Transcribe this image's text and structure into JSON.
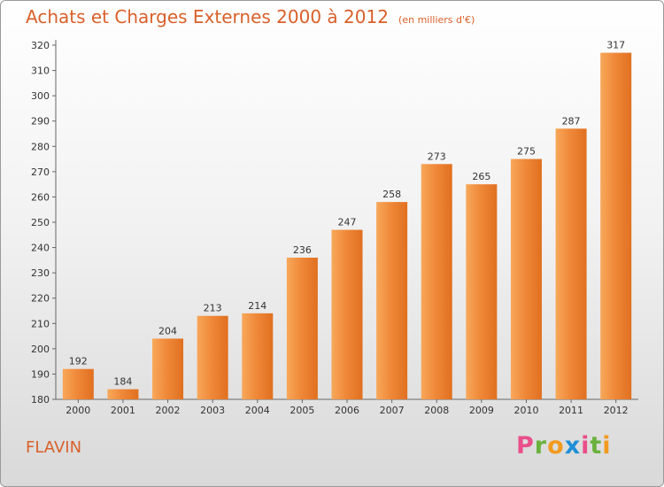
{
  "title": "Achats et Charges Externes 2000 à 2012",
  "unit_note": "(en milliers d'€)",
  "commune": "FLAVIN",
  "logo_letters": [
    "P",
    "r",
    "o",
    "x",
    "i",
    "t",
    "i"
  ],
  "chart_data": {
    "type": "bar",
    "categories": [
      "2000",
      "2001",
      "2002",
      "2003",
      "2004",
      "2005",
      "2006",
      "2007",
      "2008",
      "2009",
      "2010",
      "2011",
      "2012"
    ],
    "values": [
      192,
      184,
      204,
      213,
      214,
      236,
      247,
      258,
      273,
      265,
      275,
      287,
      317
    ],
    "ylim": [
      180,
      320
    ],
    "yticks": [
      180,
      190,
      200,
      210,
      220,
      230,
      240,
      250,
      260,
      270,
      280,
      290,
      300,
      310,
      320
    ],
    "grid": false,
    "bar_color": "#f0893a",
    "bar_color_light": "#f7a85a",
    "bar_color_dark": "#e07020"
  }
}
